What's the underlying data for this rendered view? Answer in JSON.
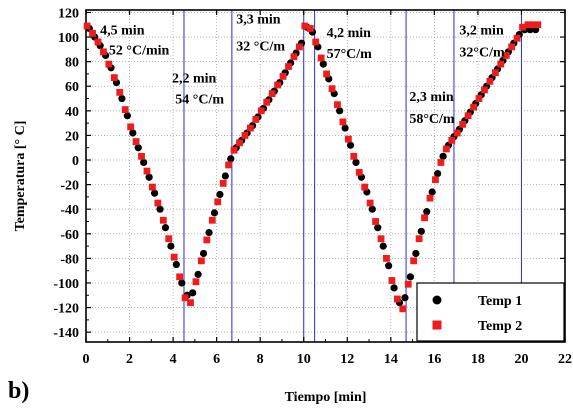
{
  "panel_label": "b)",
  "chart_data": {
    "type": "scatter",
    "title": "",
    "xlabel": "Tiempo [min]",
    "ylabel": "Temperatura [° C]",
    "xlim": [
      0,
      22
    ],
    "ylim": [
      -148,
      122
    ],
    "xticks": [
      0,
      2,
      4,
      6,
      8,
      10,
      12,
      14,
      16,
      18,
      20,
      22
    ],
    "yticks": [
      -140,
      -120,
      -100,
      -80,
      -60,
      -40,
      -20,
      0,
      20,
      40,
      60,
      80,
      100,
      120
    ],
    "grid": true,
    "grid_style": "dotted",
    "legend_position": "bottom-right",
    "vlines": [
      4.5,
      6.7,
      10.0,
      10.5,
      14.7,
      16.9,
      20.0
    ],
    "vline_color": "#2b2bd6",
    "series": [
      {
        "name": "Temp 1",
        "color": "#000000",
        "marker": "circle",
        "x": [
          0.15,
          0.4,
          0.65,
          0.9,
          1.15,
          1.4,
          1.65,
          1.9,
          2.15,
          2.4,
          2.65,
          2.9,
          3.15,
          3.4,
          3.65,
          3.9,
          4.15,
          4.4,
          4.65,
          4.9,
          5.15,
          5.4,
          5.65,
          5.9,
          6.15,
          6.4,
          6.65,
          6.9,
          7.15,
          7.4,
          7.65,
          7.9,
          8.15,
          8.4,
          8.65,
          8.9,
          9.15,
          9.4,
          9.65,
          9.9,
          10.15,
          10.4,
          10.65,
          10.9,
          11.15,
          11.4,
          11.65,
          11.9,
          12.15,
          12.4,
          12.65,
          12.9,
          13.15,
          13.4,
          13.65,
          13.9,
          14.15,
          14.4,
          14.65,
          14.9,
          15.15,
          15.4,
          15.65,
          15.9,
          16.15,
          16.4,
          16.65,
          16.9,
          17.15,
          17.4,
          17.65,
          17.9,
          18.15,
          18.4,
          18.65,
          18.9,
          19.15,
          19.4,
          19.65,
          19.9,
          20.15,
          20.4,
          20.65
        ],
        "y": [
          107,
          100,
          93,
          85,
          75,
          63,
          50,
          36,
          22,
          10,
          -2,
          -14,
          -27,
          -40,
          -55,
          -70,
          -85,
          -100,
          -110,
          -108,
          -93,
          -76,
          -59,
          -43,
          -28,
          -13,
          1,
          10,
          16,
          22,
          28,
          35,
          42,
          49,
          56,
          63,
          71,
          79,
          87,
          95,
          108,
          104,
          92,
          78,
          66,
          54,
          40,
          26,
          12,
          -2,
          -14,
          -26,
          -40,
          -55,
          -70,
          -86,
          -104,
          -116,
          -112,
          -95,
          -76,
          -58,
          -42,
          -26,
          -11,
          3,
          12,
          19,
          25,
          32,
          39,
          46,
          53,
          60,
          67,
          74,
          81,
          88,
          95,
          102,
          106,
          106,
          106
        ]
      },
      {
        "name": "Temp 2",
        "color": "#ee1c1c",
        "marker": "square",
        "x": [
          0.05,
          0.3,
          0.55,
          0.8,
          1.05,
          1.3,
          1.55,
          1.8,
          2.05,
          2.3,
          2.55,
          2.8,
          3.05,
          3.3,
          3.55,
          3.8,
          4.05,
          4.3,
          4.55,
          4.8,
          5.05,
          5.3,
          5.55,
          5.8,
          6.05,
          6.3,
          6.55,
          6.8,
          7.05,
          7.3,
          7.55,
          7.8,
          8.05,
          8.3,
          8.55,
          8.8,
          9.05,
          9.3,
          9.55,
          9.8,
          10.05,
          10.3,
          10.55,
          10.8,
          11.05,
          11.3,
          11.55,
          11.8,
          12.05,
          12.3,
          12.55,
          12.8,
          13.05,
          13.3,
          13.55,
          13.8,
          14.05,
          14.3,
          14.55,
          14.8,
          15.05,
          15.3,
          15.55,
          15.8,
          16.05,
          16.3,
          16.55,
          16.8,
          17.05,
          17.3,
          17.55,
          17.8,
          18.05,
          18.3,
          18.55,
          18.8,
          19.05,
          19.3,
          19.55,
          19.8,
          20.05,
          20.3,
          20.55,
          20.75
        ],
        "y": [
          109,
          103,
          96,
          88,
          78,
          67,
          55,
          41,
          27,
          15,
          3,
          -9,
          -22,
          -35,
          -49,
          -64,
          -79,
          -95,
          -112,
          -116,
          -99,
          -82,
          -65,
          -49,
          -34,
          -19,
          -4,
          8,
          14,
          20,
          26,
          33,
          40,
          47,
          54,
          61,
          68,
          76,
          84,
          92,
          109,
          107,
          96,
          83,
          70,
          58,
          45,
          31,
          17,
          3,
          -10,
          -22,
          -35,
          -50,
          -64,
          -80,
          -98,
          -113,
          -121,
          -101,
          -82,
          -64,
          -47,
          -31,
          -16,
          -2,
          9,
          16,
          22,
          29,
          36,
          43,
          50,
          57,
          64,
          71,
          78,
          85,
          92,
          99,
          108,
          110,
          110,
          110
        ]
      }
    ],
    "annotations": [
      {
        "text": "4,5 min",
        "x": 0.65,
        "y": 102
      },
      {
        "text": "52 °C/min",
        "x": 1.05,
        "y": 86
      },
      {
        "text": "2,2 min",
        "x": 3.95,
        "y": 63
      },
      {
        "text": "54 °C/m",
        "x": 4.1,
        "y": 46
      },
      {
        "text": "3,3 min",
        "x": 6.9,
        "y": 111
      },
      {
        "text": "32 °C/m",
        "x": 6.9,
        "y": 89
      },
      {
        "text": "4,2 min",
        "x": 11.05,
        "y": 100
      },
      {
        "text": "57°C/m",
        "x": 11.05,
        "y": 83
      },
      {
        "text": "2,3 min",
        "x": 14.85,
        "y": 48
      },
      {
        "text": "58°C/m",
        "x": 14.85,
        "y": 30
      },
      {
        "text": "3,2 min",
        "x": 17.15,
        "y": 102
      },
      {
        "text": "32°C/m",
        "x": 17.15,
        "y": 84
      }
    ]
  }
}
